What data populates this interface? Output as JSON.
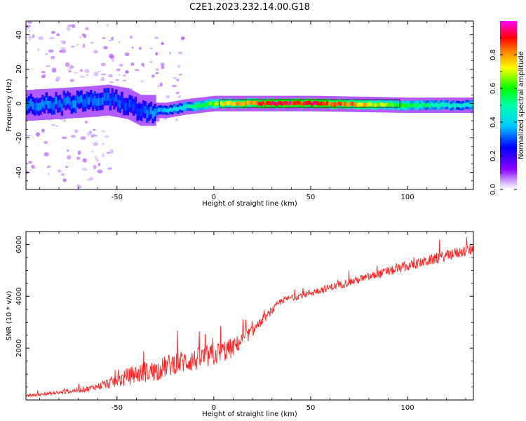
{
  "figure": {
    "title": "C2E1.2023.232.14.00.G18"
  },
  "chart_data": [
    {
      "type": "heatmap",
      "xlabel": "Height of straight line (km)",
      "ylabel": "Frequency (Hz)",
      "xlim": [
        -97,
        134
      ],
      "ylim": [
        -50,
        48
      ],
      "x_ticks": [
        -50,
        0,
        50,
        100
      ],
      "y_ticks": [
        40,
        20,
        0,
        -20,
        -40
      ],
      "grid": false,
      "colorbar": {
        "label": "Normalized spectral amplitude",
        "ticks": [
          0.0,
          0.2,
          0.4,
          0.6,
          0.8
        ],
        "range": [
          0,
          1
        ],
        "colormap": [
          "#ffffff",
          "#8b00ff",
          "#0000ff",
          "#00ffff",
          "#00ff00",
          "#ffff00",
          "#ff8000",
          "#ff0000",
          "#ff00ff"
        ]
      },
      "ridge_frequency_hz": [
        {
          "x": -95,
          "y": -1
        },
        {
          "x": -80,
          "y": 0
        },
        {
          "x": -65,
          "y": 1
        },
        {
          "x": -55,
          "y": 2
        },
        {
          "x": -45,
          "y": 0
        },
        {
          "x": -38,
          "y": -4
        },
        {
          "x": -25,
          "y": -4
        },
        {
          "x": -15,
          "y": -2
        },
        {
          "x": 0,
          "y": 0
        },
        {
          "x": 50,
          "y": 0
        },
        {
          "x": 100,
          "y": -1
        },
        {
          "x": 134,
          "y": -1
        }
      ],
      "ridge_amplitude": [
        {
          "x": -95,
          "v": 0.35
        },
        {
          "x": -60,
          "v": 0.35
        },
        {
          "x": -40,
          "v": 0.3
        },
        {
          "x": -20,
          "v": 0.45
        },
        {
          "x": 0,
          "v": 0.7
        },
        {
          "x": 10,
          "v": 0.85
        },
        {
          "x": 30,
          "v": 0.98
        },
        {
          "x": 50,
          "v": 0.98
        },
        {
          "x": 70,
          "v": 0.88
        },
        {
          "x": 100,
          "v": 0.6
        },
        {
          "x": 134,
          "v": 0.45
        }
      ]
    },
    {
      "type": "line",
      "xlabel": "Height of straight line (km)",
      "ylabel": "SNR (10 * v/v)",
      "xlim": [
        -97,
        134
      ],
      "ylim": [
        0,
        6500
      ],
      "x_ticks": [
        -50,
        0,
        50,
        100
      ],
      "y_ticks": [
        2000,
        4000,
        6000
      ],
      "grid": false,
      "series": [
        {
          "color": "#ff2020",
          "trend": [
            {
              "x": -97,
              "y": 150
            },
            {
              "x": -80,
              "y": 250
            },
            {
              "x": -65,
              "y": 400
            },
            {
              "x": -50,
              "y": 650
            },
            {
              "x": -40,
              "y": 900
            },
            {
              "x": -30,
              "y": 1000
            },
            {
              "x": -20,
              "y": 1300
            },
            {
              "x": -10,
              "y": 1400
            },
            {
              "x": 0,
              "y": 1600
            },
            {
              "x": 10,
              "y": 1900
            },
            {
              "x": 20,
              "y": 2600
            },
            {
              "x": 25,
              "y": 3000
            },
            {
              "x": 30,
              "y": 3400
            },
            {
              "x": 35,
              "y": 3800
            },
            {
              "x": 50,
              "y": 4100
            },
            {
              "x": 70,
              "y": 4500
            },
            {
              "x": 90,
              "y": 4900
            },
            {
              "x": 110,
              "y": 5300
            },
            {
              "x": 125,
              "y": 5600
            },
            {
              "x": 134,
              "y": 5750
            }
          ],
          "noise_envelope": [
            {
              "x": -97,
              "a": 80
            },
            {
              "x": -60,
              "a": 250
            },
            {
              "x": -45,
              "a": 700
            },
            {
              "x": -20,
              "a": 900
            },
            {
              "x": 5,
              "a": 900
            },
            {
              "x": 25,
              "a": 300
            },
            {
              "x": 40,
              "a": 250
            },
            {
              "x": 134,
              "a": 450
            }
          ]
        }
      ]
    }
  ]
}
